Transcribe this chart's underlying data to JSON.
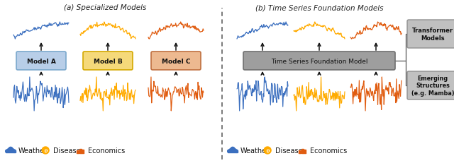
{
  "title_a": "(a) Specialized Models",
  "title_b": "(b) Time Series Foundation Models",
  "color_weather": "#3B6FBF",
  "color_disease": "#FFAB00",
  "color_economics": "#E05C10",
  "color_model_a_face": "#B8CEE8",
  "color_model_a_edge": "#7AA8CC",
  "color_model_b_face": "#F5D97A",
  "color_model_b_edge": "#D4A800",
  "color_model_c_face": "#EDB990",
  "color_model_c_edge": "#C07040",
  "color_foundation_face": "#9E9E9E",
  "color_foundation_edge": "#707070",
  "color_side_box_face": "#C0C0C0",
  "color_side_box_edge": "#909090",
  "bg_color": "#FFFFFF",
  "dashed_line_color": "#555555",
  "arrow_color": "#111111",
  "label_weather": "Weather",
  "label_disease": "Disease",
  "label_economics": "Economics",
  "label_model_a": "Model A",
  "label_model_b": "Model B",
  "label_model_c": "Model C",
  "label_foundation": "Time Series Foundation Model",
  "label_transformer": "Transformer\nModels",
  "label_emerging": "Emerging\nStructures\n(e.g. Mamba)",
  "seed": 42
}
